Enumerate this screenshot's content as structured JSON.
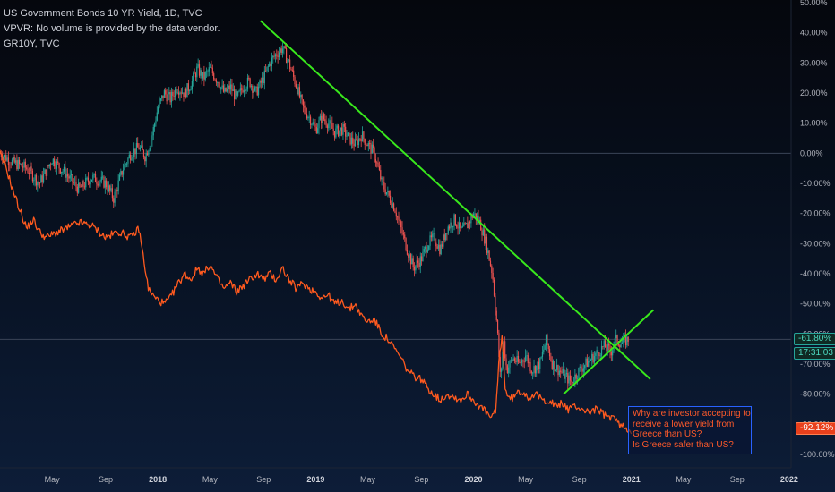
{
  "header": {
    "title": "US Government Bonds 10 YR Yield, 1D, TVC",
    "line2": "VPVR: No volume is provided by the data vendor.",
    "line3": "GR10Y, TVC"
  },
  "price_tags": {
    "us_value": "-61.80%",
    "countdown": "17:31:03",
    "gr_value": "-92.12%"
  },
  "annotation": {
    "lines": [
      "Why are investor accepting to",
      "receive a lower yield from",
      "Greece than US?",
      "Is Greece safer than US?"
    ],
    "text_color": "#ff5a2a",
    "border_color": "#2962ff"
  },
  "colors": {
    "background_top": "#05070d",
    "background_bottom": "#0d1d38",
    "candle_up": "#26a69a",
    "candle_down": "#ef5350",
    "greece_line": "#ff5a1f",
    "trendline": "#39e81c",
    "axis_text": "#b2b5be"
  },
  "chart_data": {
    "type": "line",
    "scale": "percent",
    "y_ticks": [
      "50.00%",
      "40.00%",
      "30.00%",
      "20.00%",
      "10.00%",
      "0.00%",
      "-10.00%",
      "-20.00%",
      "-30.00%",
      "-40.00%",
      "-50.00%",
      "-60.00%",
      "-70.00%",
      "-80.00%",
      "-90.00%",
      "-100.00%"
    ],
    "ylim": [
      -100,
      50
    ],
    "x_ticks": [
      {
        "label": "May",
        "t": 2017.33,
        "bold": false
      },
      {
        "label": "Sep",
        "t": 2017.67,
        "bold": false
      },
      {
        "label": "2018",
        "t": 2018.0,
        "bold": true
      },
      {
        "label": "May",
        "t": 2018.33,
        "bold": false
      },
      {
        "label": "Sep",
        "t": 2018.67,
        "bold": false
      },
      {
        "label": "2019",
        "t": 2019.0,
        "bold": true
      },
      {
        "label": "May",
        "t": 2019.33,
        "bold": false
      },
      {
        "label": "Sep",
        "t": 2019.67,
        "bold": false
      },
      {
        "label": "2020",
        "t": 2020.0,
        "bold": true
      },
      {
        "label": "May",
        "t": 2020.33,
        "bold": false
      },
      {
        "label": "Sep",
        "t": 2020.67,
        "bold": false
      },
      {
        "label": "2021",
        "t": 2021.0,
        "bold": true
      },
      {
        "label": "May",
        "t": 2021.33,
        "bold": false
      },
      {
        "label": "Sep",
        "t": 2021.67,
        "bold": false
      },
      {
        "label": "2022",
        "t": 2022.0,
        "bold": true
      }
    ],
    "xlim": [
      2017.0,
      2022.29
    ],
    "series": [
      {
        "name": "US Government Bonds 10 YR Yield, 1D, TVC",
        "style": "candles",
        "points": [
          [
            2017.0,
            0
          ],
          [
            2017.08,
            -3
          ],
          [
            2017.17,
            -5
          ],
          [
            2017.25,
            -10
          ],
          [
            2017.33,
            -2
          ],
          [
            2017.42,
            -7
          ],
          [
            2017.5,
            -12
          ],
          [
            2017.58,
            -8
          ],
          [
            2017.67,
            -10
          ],
          [
            2017.72,
            -15
          ],
          [
            2017.78,
            -5
          ],
          [
            2017.83,
            0
          ],
          [
            2017.88,
            2
          ],
          [
            2017.92,
            -1
          ],
          [
            2017.96,
            5
          ],
          [
            2018.0,
            15
          ],
          [
            2018.04,
            20
          ],
          [
            2018.08,
            18
          ],
          [
            2018.12,
            22
          ],
          [
            2018.17,
            20
          ],
          [
            2018.21,
            23
          ],
          [
            2018.25,
            28
          ],
          [
            2018.29,
            25
          ],
          [
            2018.33,
            28
          ],
          [
            2018.38,
            24
          ],
          [
            2018.42,
            20
          ],
          [
            2018.46,
            22
          ],
          [
            2018.5,
            18
          ],
          [
            2018.54,
            22
          ],
          [
            2018.58,
            24
          ],
          [
            2018.62,
            20
          ],
          [
            2018.67,
            25
          ],
          [
            2018.71,
            30
          ],
          [
            2018.75,
            33
          ],
          [
            2018.79,
            35
          ],
          [
            2018.83,
            30
          ],
          [
            2018.88,
            22
          ],
          [
            2018.92,
            15
          ],
          [
            2018.96,
            12
          ],
          [
            2019.0,
            8
          ],
          [
            2019.04,
            12
          ],
          [
            2019.08,
            10
          ],
          [
            2019.12,
            7
          ],
          [
            2019.17,
            8
          ],
          [
            2019.21,
            5
          ],
          [
            2019.25,
            3
          ],
          [
            2019.29,
            6
          ],
          [
            2019.33,
            3
          ],
          [
            2019.37,
            0
          ],
          [
            2019.42,
            -10
          ],
          [
            2019.46,
            -14
          ],
          [
            2019.5,
            -18
          ],
          [
            2019.54,
            -25
          ],
          [
            2019.58,
            -32
          ],
          [
            2019.62,
            -38
          ],
          [
            2019.67,
            -35
          ],
          [
            2019.71,
            -30
          ],
          [
            2019.75,
            -28
          ],
          [
            2019.79,
            -32
          ],
          [
            2019.83,
            -25
          ],
          [
            2019.88,
            -22
          ],
          [
            2019.92,
            -26
          ],
          [
            2019.96,
            -24
          ],
          [
            2020.0,
            -20
          ],
          [
            2020.04,
            -23
          ],
          [
            2020.08,
            -30
          ],
          [
            2020.12,
            -40
          ],
          [
            2020.15,
            -58
          ],
          [
            2020.17,
            -75
          ],
          [
            2020.19,
            -62
          ],
          [
            2020.21,
            -72
          ],
          [
            2020.25,
            -68
          ],
          [
            2020.29,
            -70
          ],
          [
            2020.33,
            -67
          ],
          [
            2020.37,
            -72
          ],
          [
            2020.42,
            -70
          ],
          [
            2020.46,
            -62
          ],
          [
            2020.5,
            -70
          ],
          [
            2020.54,
            -72
          ],
          [
            2020.58,
            -74
          ],
          [
            2020.62,
            -76
          ],
          [
            2020.67,
            -72
          ],
          [
            2020.71,
            -70
          ],
          [
            2020.75,
            -68
          ],
          [
            2020.79,
            -66
          ],
          [
            2020.83,
            -64
          ],
          [
            2020.87,
            -66
          ],
          [
            2020.9,
            -62
          ],
          [
            2020.94,
            -63
          ],
          [
            2020.98,
            -61.8
          ]
        ]
      },
      {
        "name": "GR10Y, TVC",
        "style": "line",
        "points": [
          [
            2017.0,
            0
          ],
          [
            2017.04,
            -5
          ],
          [
            2017.08,
            -12
          ],
          [
            2017.12,
            -18
          ],
          [
            2017.17,
            -25
          ],
          [
            2017.21,
            -22
          ],
          [
            2017.25,
            -26
          ],
          [
            2017.29,
            -28
          ],
          [
            2017.33,
            -27
          ],
          [
            2017.42,
            -25
          ],
          [
            2017.5,
            -23
          ],
          [
            2017.58,
            -24
          ],
          [
            2017.67,
            -28
          ],
          [
            2017.75,
            -26
          ],
          [
            2017.83,
            -28
          ],
          [
            2017.88,
            -25
          ],
          [
            2017.91,
            -35
          ],
          [
            2017.94,
            -45
          ],
          [
            2017.98,
            -48
          ],
          [
            2018.04,
            -50
          ],
          [
            2018.08,
            -48
          ],
          [
            2018.12,
            -44
          ],
          [
            2018.17,
            -40
          ],
          [
            2018.21,
            -42
          ],
          [
            2018.25,
            -38
          ],
          [
            2018.29,
            -40
          ],
          [
            2018.33,
            -37
          ],
          [
            2018.38,
            -42
          ],
          [
            2018.42,
            -45
          ],
          [
            2018.46,
            -43
          ],
          [
            2018.5,
            -46
          ],
          [
            2018.54,
            -44
          ],
          [
            2018.58,
            -42
          ],
          [
            2018.63,
            -40
          ],
          [
            2018.67,
            -42
          ],
          [
            2018.71,
            -40
          ],
          [
            2018.75,
            -42
          ],
          [
            2018.79,
            -38
          ],
          [
            2018.83,
            -42
          ],
          [
            2018.88,
            -45
          ],
          [
            2018.92,
            -43
          ],
          [
            2018.96,
            -45
          ],
          [
            2019.0,
            -46
          ],
          [
            2019.04,
            -48
          ],
          [
            2019.08,
            -47
          ],
          [
            2019.12,
            -50
          ],
          [
            2019.17,
            -49
          ],
          [
            2019.21,
            -52
          ],
          [
            2019.25,
            -50
          ],
          [
            2019.29,
            -54
          ],
          [
            2019.33,
            -56
          ],
          [
            2019.37,
            -55
          ],
          [
            2019.42,
            -60
          ],
          [
            2019.46,
            -62
          ],
          [
            2019.5,
            -65
          ],
          [
            2019.54,
            -68
          ],
          [
            2019.58,
            -72
          ],
          [
            2019.62,
            -74
          ],
          [
            2019.67,
            -75
          ],
          [
            2019.71,
            -78
          ],
          [
            2019.75,
            -80
          ],
          [
            2019.79,
            -82
          ],
          [
            2019.83,
            -80
          ],
          [
            2019.88,
            -81
          ],
          [
            2019.92,
            -82
          ],
          [
            2019.96,
            -80
          ],
          [
            2020.0,
            -82
          ],
          [
            2020.04,
            -84
          ],
          [
            2020.08,
            -86
          ],
          [
            2020.11,
            -88
          ],
          [
            2020.14,
            -86
          ],
          [
            2020.16,
            -70
          ],
          [
            2020.18,
            -60
          ],
          [
            2020.2,
            -78
          ],
          [
            2020.23,
            -82
          ],
          [
            2020.27,
            -80
          ],
          [
            2020.31,
            -79
          ],
          [
            2020.35,
            -81
          ],
          [
            2020.39,
            -80
          ],
          [
            2020.44,
            -82
          ],
          [
            2020.48,
            -82
          ],
          [
            2020.52,
            -84
          ],
          [
            2020.56,
            -83
          ],
          [
            2020.6,
            -85
          ],
          [
            2020.65,
            -84
          ],
          [
            2020.69,
            -85
          ],
          [
            2020.73,
            -86
          ],
          [
            2020.77,
            -85
          ],
          [
            2020.81,
            -86
          ],
          [
            2020.85,
            -88
          ],
          [
            2020.88,
            -87
          ],
          [
            2020.92,
            -90
          ],
          [
            2020.96,
            -91
          ],
          [
            2021.0,
            -92.12
          ]
        ]
      }
    ],
    "reference_lines": [
      {
        "label": "0.00%",
        "y": 0
      },
      {
        "label": "-61.80%",
        "y": -61.8
      }
    ],
    "trendlines": [
      {
        "from": [
          2018.65,
          44
        ],
        "to": [
          2021.12,
          -75
        ]
      },
      {
        "from": [
          2020.57,
          -80
        ],
        "to": [
          2021.14,
          -52
        ]
      }
    ],
    "grid": false,
    "legend": "top-left"
  }
}
